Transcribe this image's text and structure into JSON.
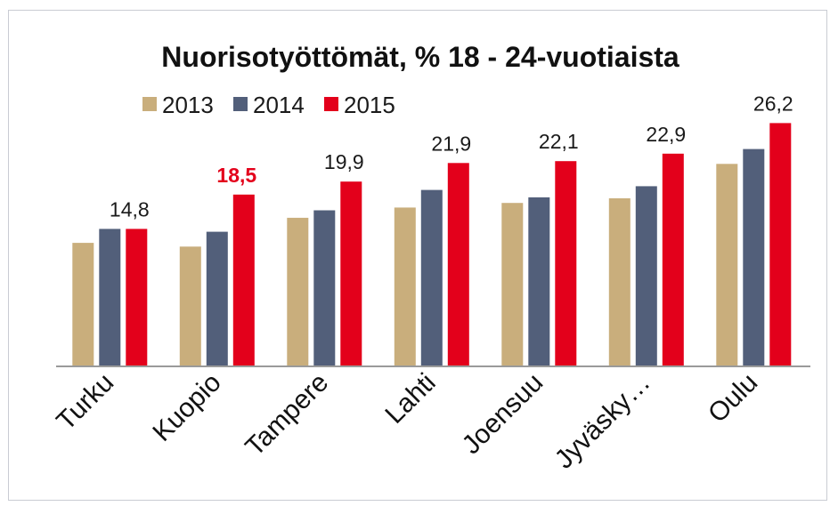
{
  "chart_data": {
    "type": "bar",
    "title": "Nuorisotyöttömät, % 18 - 24-vuotiaista",
    "categories": [
      "Turku",
      "Kuopio",
      "Tampere",
      "Lahti",
      "Joensuu",
      "Jyväsky…",
      "Oulu"
    ],
    "series": [
      {
        "name": "2013",
        "color": "#c9ae7c",
        "values": [
          13.3,
          12.9,
          16.0,
          17.1,
          17.6,
          18.1,
          21.8
        ]
      },
      {
        "name": "2014",
        "color": "#525f7a",
        "values": [
          14.8,
          14.5,
          16.8,
          19.0,
          18.2,
          19.4,
          23.4
        ]
      },
      {
        "name": "2015",
        "color": "#e3001b",
        "values": [
          14.8,
          18.5,
          19.9,
          21.9,
          22.1,
          22.9,
          26.2
        ]
      }
    ],
    "data_labels": {
      "series": "2015",
      "texts": [
        "14,8",
        "18,5",
        "19,9",
        "21,9",
        "22,1",
        "22,9",
        "26,2"
      ],
      "highlight_category": "Kuopio",
      "highlight_color": "#e3001b"
    },
    "ylim": [
      0,
      27
    ],
    "xlabel": "",
    "ylabel": "",
    "legend_position": "top",
    "grid": false,
    "axis_color": "#9a9a9a"
  }
}
